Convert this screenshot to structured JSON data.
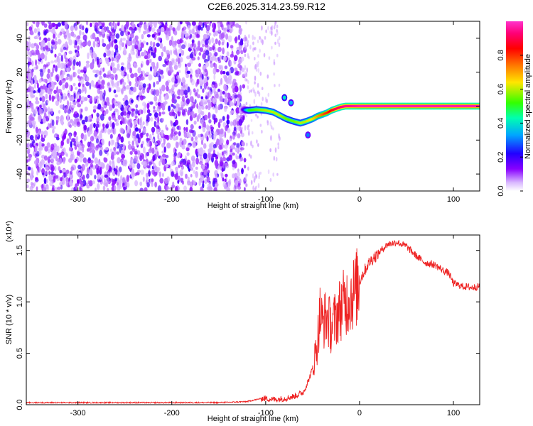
{
  "title": "C2E6.2025.314.23.59.R12",
  "chart_data": [
    {
      "type": "heatmap",
      "xlabel": "Height of straight line (km)",
      "ylabel": "Frequency (Hz)",
      "xlim": [
        -355,
        128
      ],
      "ylim": [
        -50,
        50
      ],
      "xticks": [
        -300,
        -200,
        -100,
        0,
        100
      ],
      "yticks": [
        -40,
        -20,
        0,
        20,
        40
      ],
      "colorbar": {
        "label": "Normalized spectral amplitude",
        "ticks": [
          0.0,
          0.2,
          0.4,
          0.6,
          0.8
        ],
        "colormap": [
          "#ffffff",
          "#d9b8ff",
          "#8800ff",
          "#2200ff",
          "#00a6ff",
          "#00ffb0",
          "#33ff00",
          "#ffe600",
          "#ff7700",
          "#ff0000",
          "#ff0077",
          "#ff33cc"
        ]
      },
      "noise_region": {
        "x": [
          -355,
          -122
        ],
        "y": [
          -50,
          50
        ],
        "amplitude": [
          0.05,
          0.2
        ]
      },
      "scatter_region": {
        "x": [
          -122,
          -85
        ],
        "amplitude": [
          0.0,
          0.08
        ]
      },
      "ridge": {
        "x": [
          -125,
          -118,
          -110,
          -100,
          -92,
          -85,
          -78,
          -70,
          -63,
          -57,
          -50,
          -45,
          -40,
          -35,
          -30,
          -25,
          -20,
          -15,
          -10,
          -5,
          0,
          10,
          30,
          60,
          90,
          128
        ],
        "y": [
          -2,
          -2.5,
          -2,
          -2.5,
          -3.5,
          -5.5,
          -7.5,
          -9,
          -10,
          -9,
          -7.5,
          -6,
          -5,
          -4,
          -2.5,
          -1.5,
          -0.5,
          0,
          0,
          0,
          0,
          0,
          0,
          0,
          0,
          0
        ],
        "amplitude": [
          0.15,
          0.5,
          0.55,
          0.6,
          0.6,
          0.6,
          0.55,
          0.55,
          0.6,
          0.6,
          0.65,
          0.7,
          0.75,
          0.8,
          0.85,
          0.9,
          0.92,
          0.95,
          0.95,
          0.96,
          0.97,
          0.97,
          0.97,
          0.97,
          0.97,
          0.97
        ]
      },
      "blobs": [
        {
          "x": -80,
          "y": 5,
          "amplitude": 0.4
        },
        {
          "x": -73,
          "y": 2,
          "amplitude": 0.35
        },
        {
          "x": -55,
          "y": -17,
          "amplitude": 0.3
        }
      ]
    },
    {
      "type": "line",
      "xlabel": "Height of straight line (km)",
      "ylabel": "SNR (10 * v/v)",
      "y_multiplier": "(x10⁴)",
      "xlim": [
        -355,
        128
      ],
      "ylim": [
        0,
        1.65
      ],
      "xticks": [
        -300,
        -200,
        -100,
        0,
        100
      ],
      "yticks": [
        "0.0",
        "0.5",
        "1.0",
        "1.5"
      ],
      "color": "#ee2222",
      "series": [
        {
          "x": [
            -355,
            -300,
            -250,
            -200,
            -150,
            -120,
            -105,
            -100,
            -90,
            -80,
            -70,
            -60,
            -55,
            -50,
            -45,
            -42,
            -40,
            -35,
            -30,
            -25,
            -20,
            -15,
            -10,
            -5,
            0,
            5,
            10,
            15,
            20,
            25,
            30,
            35,
            40,
            50,
            60,
            70,
            80,
            90,
            95,
            100,
            110,
            120,
            128
          ],
          "y": [
            0.02,
            0.02,
            0.02,
            0.02,
            0.02,
            0.03,
            0.06,
            0.06,
            0.05,
            0.06,
            0.08,
            0.12,
            0.22,
            0.35,
            0.6,
            0.9,
            0.8,
            0.85,
            0.75,
            0.85,
            0.95,
            1.0,
            1.05,
            1.1,
            1.2,
            1.3,
            1.38,
            1.43,
            1.47,
            1.52,
            1.56,
            1.57,
            1.58,
            1.54,
            1.45,
            1.38,
            1.36,
            1.3,
            1.28,
            1.18,
            1.15,
            1.14,
            1.15
          ]
        }
      ]
    }
  ]
}
